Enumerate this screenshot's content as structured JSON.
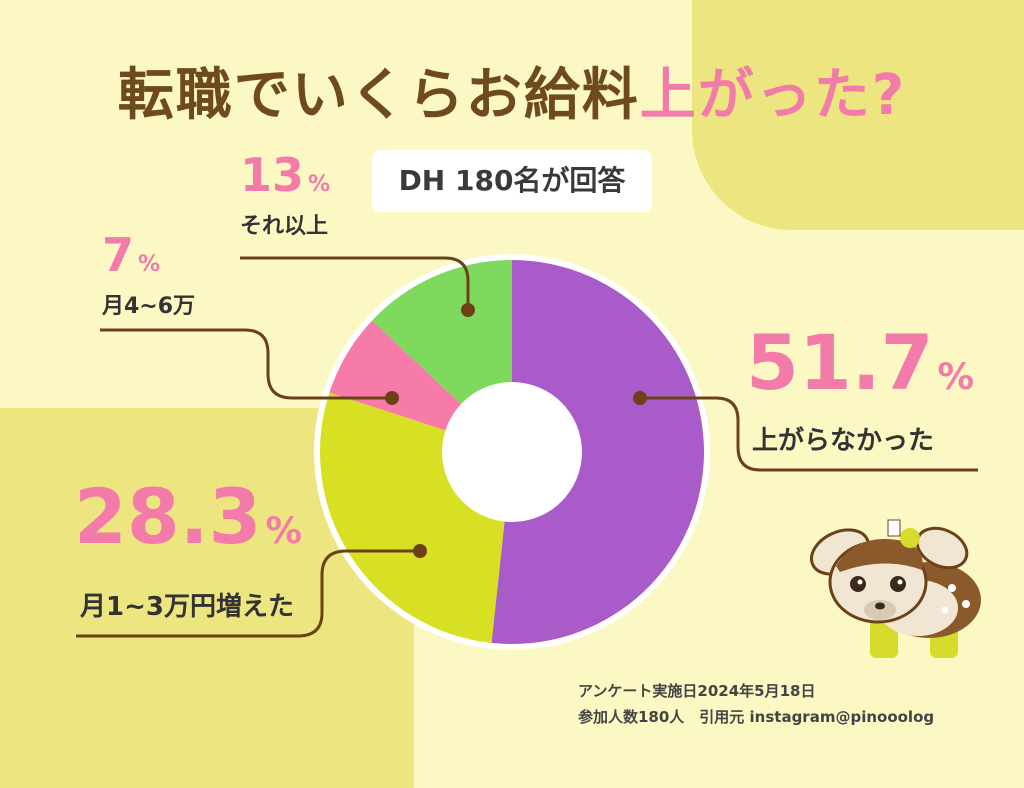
{
  "title": {
    "main": "転職でいくらお給料",
    "highlight": "上がった?"
  },
  "badge": "DH 180名が回答",
  "chart_data": {
    "type": "pie",
    "categories": [
      "上がらなかった",
      "月1~3万円増えた",
      "月4~6万",
      "それ以上"
    ],
    "values": [
      51.7,
      28.3,
      7,
      13
    ],
    "value_labels": [
      "51.7",
      "28.3",
      "7",
      "13"
    ],
    "unit": "%",
    "colors": [
      "#A95BC9",
      "#D7E022",
      "#F67BA8",
      "#7FD95C"
    ]
  },
  "footer": {
    "line1": "アンケート実施日2024年5月18日",
    "line2": "参加人数180人　引用元 instagram@pinooolog"
  }
}
